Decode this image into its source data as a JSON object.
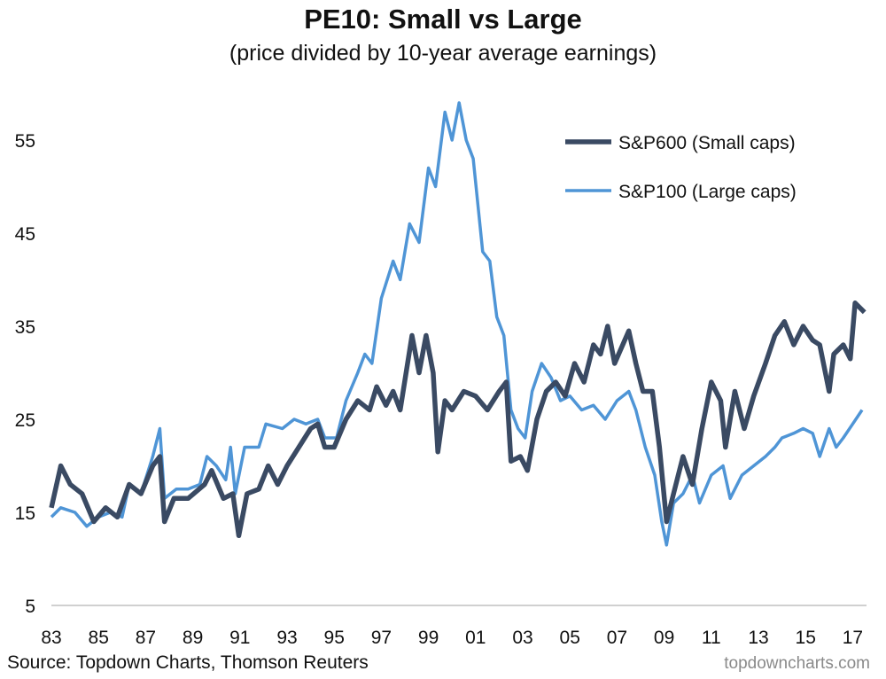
{
  "chart_data": {
    "type": "line",
    "title": "PE10: Small vs Large",
    "subtitle": "(price divided by 10-year average earnings)",
    "xlabel": "",
    "ylabel": "",
    "xlim": [
      1983,
      2017.6
    ],
    "ylim": [
      5,
      60
    ],
    "x_ticks": [
      "83",
      "85",
      "87",
      "89",
      "91",
      "93",
      "95",
      "97",
      "99",
      "01",
      "03",
      "05",
      "07",
      "09",
      "11",
      "13",
      "15",
      "17"
    ],
    "y_ticks": [
      "5",
      "15",
      "25",
      "35",
      "45",
      "55"
    ],
    "grid": false,
    "legend_position": "top-right",
    "series": [
      {
        "name": "S&P600 (Small caps)",
        "color": "#3a4a63",
        "x": [
          1983.0,
          1983.4,
          1983.8,
          1984.3,
          1984.8,
          1985.3,
          1985.8,
          1986.3,
          1986.8,
          1987.3,
          1987.6,
          1987.8,
          1988.2,
          1988.8,
          1989.5,
          1989.8,
          1990.3,
          1990.7,
          1990.95,
          1991.3,
          1991.8,
          1992.2,
          1992.6,
          1993.0,
          1993.5,
          1994.0,
          1994.3,
          1994.6,
          1995.0,
          1995.5,
          1996.0,
          1996.5,
          1996.8,
          1997.2,
          1997.5,
          1997.8,
          1998.3,
          1998.6,
          1998.9,
          1999.2,
          1999.4,
          1999.7,
          2000.0,
          2000.5,
          2001.0,
          2001.5,
          2002.0,
          2002.3,
          2002.5,
          2002.9,
          2003.2,
          2003.6,
          2004.0,
          2004.4,
          2004.8,
          2005.2,
          2005.6,
          2006.0,
          2006.3,
          2006.6,
          2006.9,
          2007.5,
          2007.8,
          2008.1,
          2008.5,
          2008.8,
          2009.1,
          2009.4,
          2009.8,
          2010.2,
          2010.6,
          2011.0,
          2011.4,
          2011.6,
          2012.0,
          2012.4,
          2012.8,
          2013.3,
          2013.7,
          2014.1,
          2014.5,
          2014.9,
          2015.3,
          2015.6,
          2016.0,
          2016.2,
          2016.6,
          2016.9,
          2017.1,
          2017.5
        ],
        "values": [
          15.5,
          20,
          18,
          17,
          14,
          15.5,
          14.5,
          18,
          17,
          20,
          21,
          14,
          16.5,
          16.5,
          18,
          19.5,
          16.5,
          17,
          12.5,
          17,
          17.5,
          20,
          18,
          20,
          22,
          24,
          24.5,
          22,
          22,
          25,
          27,
          26,
          28.5,
          26.5,
          28,
          26,
          34,
          30,
          34,
          30,
          21.5,
          27,
          26,
          28,
          27.5,
          26,
          28,
          29,
          20.5,
          21,
          19.5,
          25,
          28,
          29,
          27.5,
          31,
          29,
          33,
          32,
          35,
          31,
          34.5,
          31,
          28,
          28,
          22,
          14,
          17,
          21,
          18,
          24,
          29,
          27,
          22,
          28,
          24,
          27.5,
          31,
          34,
          35.5,
          33,
          35,
          33.5,
          33,
          28,
          32,
          33,
          31.5,
          37.5,
          36.5
        ]
      },
      {
        "name": "S&P100 (Large caps)",
        "color": "#4f95d6",
        "x": [
          1983.0,
          1983.4,
          1984.0,
          1984.5,
          1985.0,
          1985.5,
          1986.0,
          1986.3,
          1986.8,
          1987.3,
          1987.6,
          1987.8,
          1988.3,
          1988.8,
          1989.3,
          1989.6,
          1990.0,
          1990.4,
          1990.6,
          1990.8,
          1991.2,
          1991.8,
          1992.1,
          1992.8,
          1993.3,
          1993.8,
          1994.3,
          1994.6,
          1995.1,
          1995.5,
          1996.0,
          1996.3,
          1996.6,
          1997.0,
          1997.5,
          1997.8,
          1998.2,
          1998.6,
          1999.0,
          1999.3,
          1999.7,
          2000.0,
          2000.3,
          2000.6,
          2000.9,
          2001.3,
          2001.6,
          2001.9,
          2002.2,
          2002.5,
          2002.8,
          2003.1,
          2003.4,
          2003.8,
          2004.2,
          2004.6,
          2005.0,
          2005.5,
          2006.0,
          2006.5,
          2007.0,
          2007.5,
          2007.8,
          2008.2,
          2008.6,
          2008.9,
          2009.1,
          2009.4,
          2009.8,
          2010.2,
          2010.5,
          2011.0,
          2011.5,
          2011.8,
          2012.3,
          2012.8,
          2013.3,
          2013.7,
          2014.0,
          2014.5,
          2014.9,
          2015.3,
          2015.6,
          2016.0,
          2016.3,
          2016.6,
          2017.0,
          2017.4
        ],
        "values": [
          14.5,
          15.5,
          15,
          13.5,
          14.5,
          15,
          14.5,
          18,
          17,
          21,
          24,
          16.5,
          17.5,
          17.5,
          18,
          21,
          20,
          18.5,
          22,
          17,
          22,
          22,
          24.5,
          24,
          25,
          24.5,
          25,
          23,
          23,
          27,
          30,
          32,
          31,
          38,
          42,
          40,
          46,
          44,
          52,
          50,
          58,
          55,
          59,
          55,
          53,
          43,
          42,
          36,
          34,
          26,
          24,
          23,
          28,
          31,
          29.5,
          27,
          27.5,
          26,
          26.5,
          25,
          27,
          28,
          26,
          22,
          19,
          14,
          11.5,
          16,
          17,
          19,
          16,
          19,
          20,
          16.5,
          19,
          20,
          21,
          22,
          23,
          23.5,
          24,
          23.5,
          21,
          24,
          22,
          23,
          24.5,
          26
        ]
      }
    ],
    "source": "Source: Topdown Charts, Thomson Reuters",
    "watermark": "topdowncharts.com"
  }
}
